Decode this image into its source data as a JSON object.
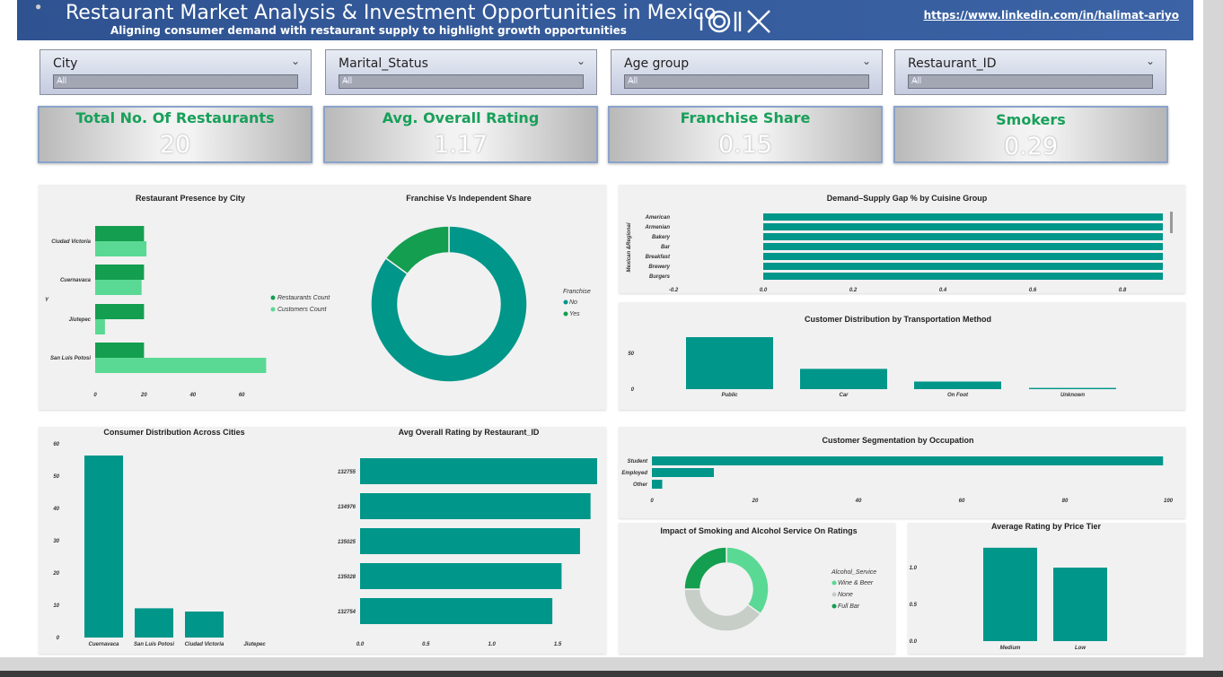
{
  "header": {
    "title": "Restaurant Market Analysis & Investment Opportunities in Mexico",
    "subtitle": "Aligning consumer demand with restaurant supply to highlight growth opportunities",
    "link": "https://www.linkedin.com/in/halimat-ariyo"
  },
  "slicers": [
    {
      "label": "City",
      "value": "All"
    },
    {
      "label": "Marital_Status",
      "value": "All"
    },
    {
      "label": "Age group",
      "value": "All"
    },
    {
      "label": "Restaurant_ID",
      "value": "All"
    }
  ],
  "kpis": [
    {
      "title": "Total No. Of Restaurants",
      "value": "20"
    },
    {
      "title": "Avg. Overall Rating",
      "value": "1.17"
    },
    {
      "title": "Franchise Share",
      "value": "0.15"
    },
    {
      "title": "Smokers",
      "value": "0.29"
    }
  ],
  "colors": {
    "dark": "#149e4f",
    "teal": "#00968a",
    "light": "#5ad994",
    "grey": "#c7cec8"
  },
  "chart_data": [
    {
      "id": "presence",
      "type": "bar",
      "title": "Restaurant Presence by City",
      "orientation": "horizontal",
      "categories": [
        "Ciudad Victoria",
        "Cuernavaca",
        "Jiutepec",
        "San Luis Potosi"
      ],
      "series": [
        {
          "name": "Restaurants Count",
          "values": [
            20,
            20,
            20,
            20
          ]
        },
        {
          "name": "Customers Count",
          "values": [
            21,
            19,
            4,
            70
          ]
        }
      ],
      "xticks": [
        "0",
        "20",
        "40",
        "60"
      ],
      "xlim": [
        0,
        75
      ],
      "ylabel": "Y"
    },
    {
      "id": "franchise",
      "type": "pie",
      "title": "Franchise Vs Independent Share",
      "legend_title": "Franchise",
      "labels": [
        "No",
        "Yes"
      ],
      "values": [
        85,
        15
      ]
    },
    {
      "id": "gap",
      "type": "bar",
      "title": "Demand–Supply Gap % by Cuisine Group",
      "orientation": "horizontal",
      "ylabel": "Mexican &Regional",
      "categories": [
        "American",
        "Armenian",
        "Bakery",
        "Bar",
        "Breakfast",
        "Brewery",
        "Burgers"
      ],
      "values": [
        0.89,
        0.89,
        0.89,
        0.89,
        0.89,
        0.89,
        0.89
      ],
      "xticks": [
        "-0.2",
        "0.0",
        "0.2",
        "0.4",
        "0.6",
        "0.8"
      ],
      "xlim": [
        -0.2,
        0.9
      ]
    },
    {
      "id": "transport",
      "type": "bar",
      "title": "Customer Distribution by Transportation Method",
      "categories": [
        "Public",
        "Car",
        "On Foot",
        "Unknown"
      ],
      "values": [
        82,
        32,
        12,
        2
      ],
      "yticks": [
        "0",
        "50"
      ],
      "ylim": [
        0,
        90
      ]
    },
    {
      "id": "consumer",
      "type": "bar",
      "title": "Consumer Distribution Across Cities",
      "categories": [
        "Cuernavaca",
        "San Luis Potosi",
        "Ciudad Victoria",
        "Jiutepec"
      ],
      "values": [
        56,
        9,
        8,
        0
      ],
      "yticks": [
        "0",
        "10",
        "20",
        "30",
        "40",
        "50",
        "60"
      ],
      "ylim": [
        0,
        60
      ]
    },
    {
      "id": "rating",
      "type": "bar",
      "title": "Avg Overall Rating by Restaurant_ID",
      "orientation": "horizontal",
      "categories": [
        "132755",
        "134976",
        "135025",
        "135028",
        "132754"
      ],
      "values": [
        1.8,
        1.75,
        1.67,
        1.53,
        1.46
      ],
      "xticks": [
        "0.0",
        "0.5",
        "1.0",
        "1.5"
      ],
      "xlim": [
        0,
        1.8
      ]
    },
    {
      "id": "occupation",
      "type": "bar",
      "title": "Customer Segmentation by Occupation",
      "orientation": "horizontal",
      "categories": [
        "Student",
        "Employed",
        "Other"
      ],
      "values": [
        99,
        12,
        2
      ],
      "xticks": [
        "0",
        "20",
        "40",
        "60",
        "80",
        "100"
      ],
      "xlim": [
        0,
        100
      ]
    },
    {
      "id": "smoking",
      "type": "pie",
      "title": "Impact of Smoking and Alcohol Service On Ratings",
      "legend_title": "Alcohol_Service",
      "labels": [
        "Wine & Beer",
        "None",
        "Full Bar"
      ],
      "values": [
        35,
        40,
        25
      ]
    },
    {
      "id": "price",
      "type": "bar",
      "title": "Average Rating by Price Tier",
      "categories": [
        "Medium",
        "Low"
      ],
      "values": [
        1.27,
        1.0
      ],
      "yticks": [
        "0.0",
        "0.5",
        "1.0"
      ],
      "ylim": [
        0,
        1.4
      ]
    }
  ]
}
